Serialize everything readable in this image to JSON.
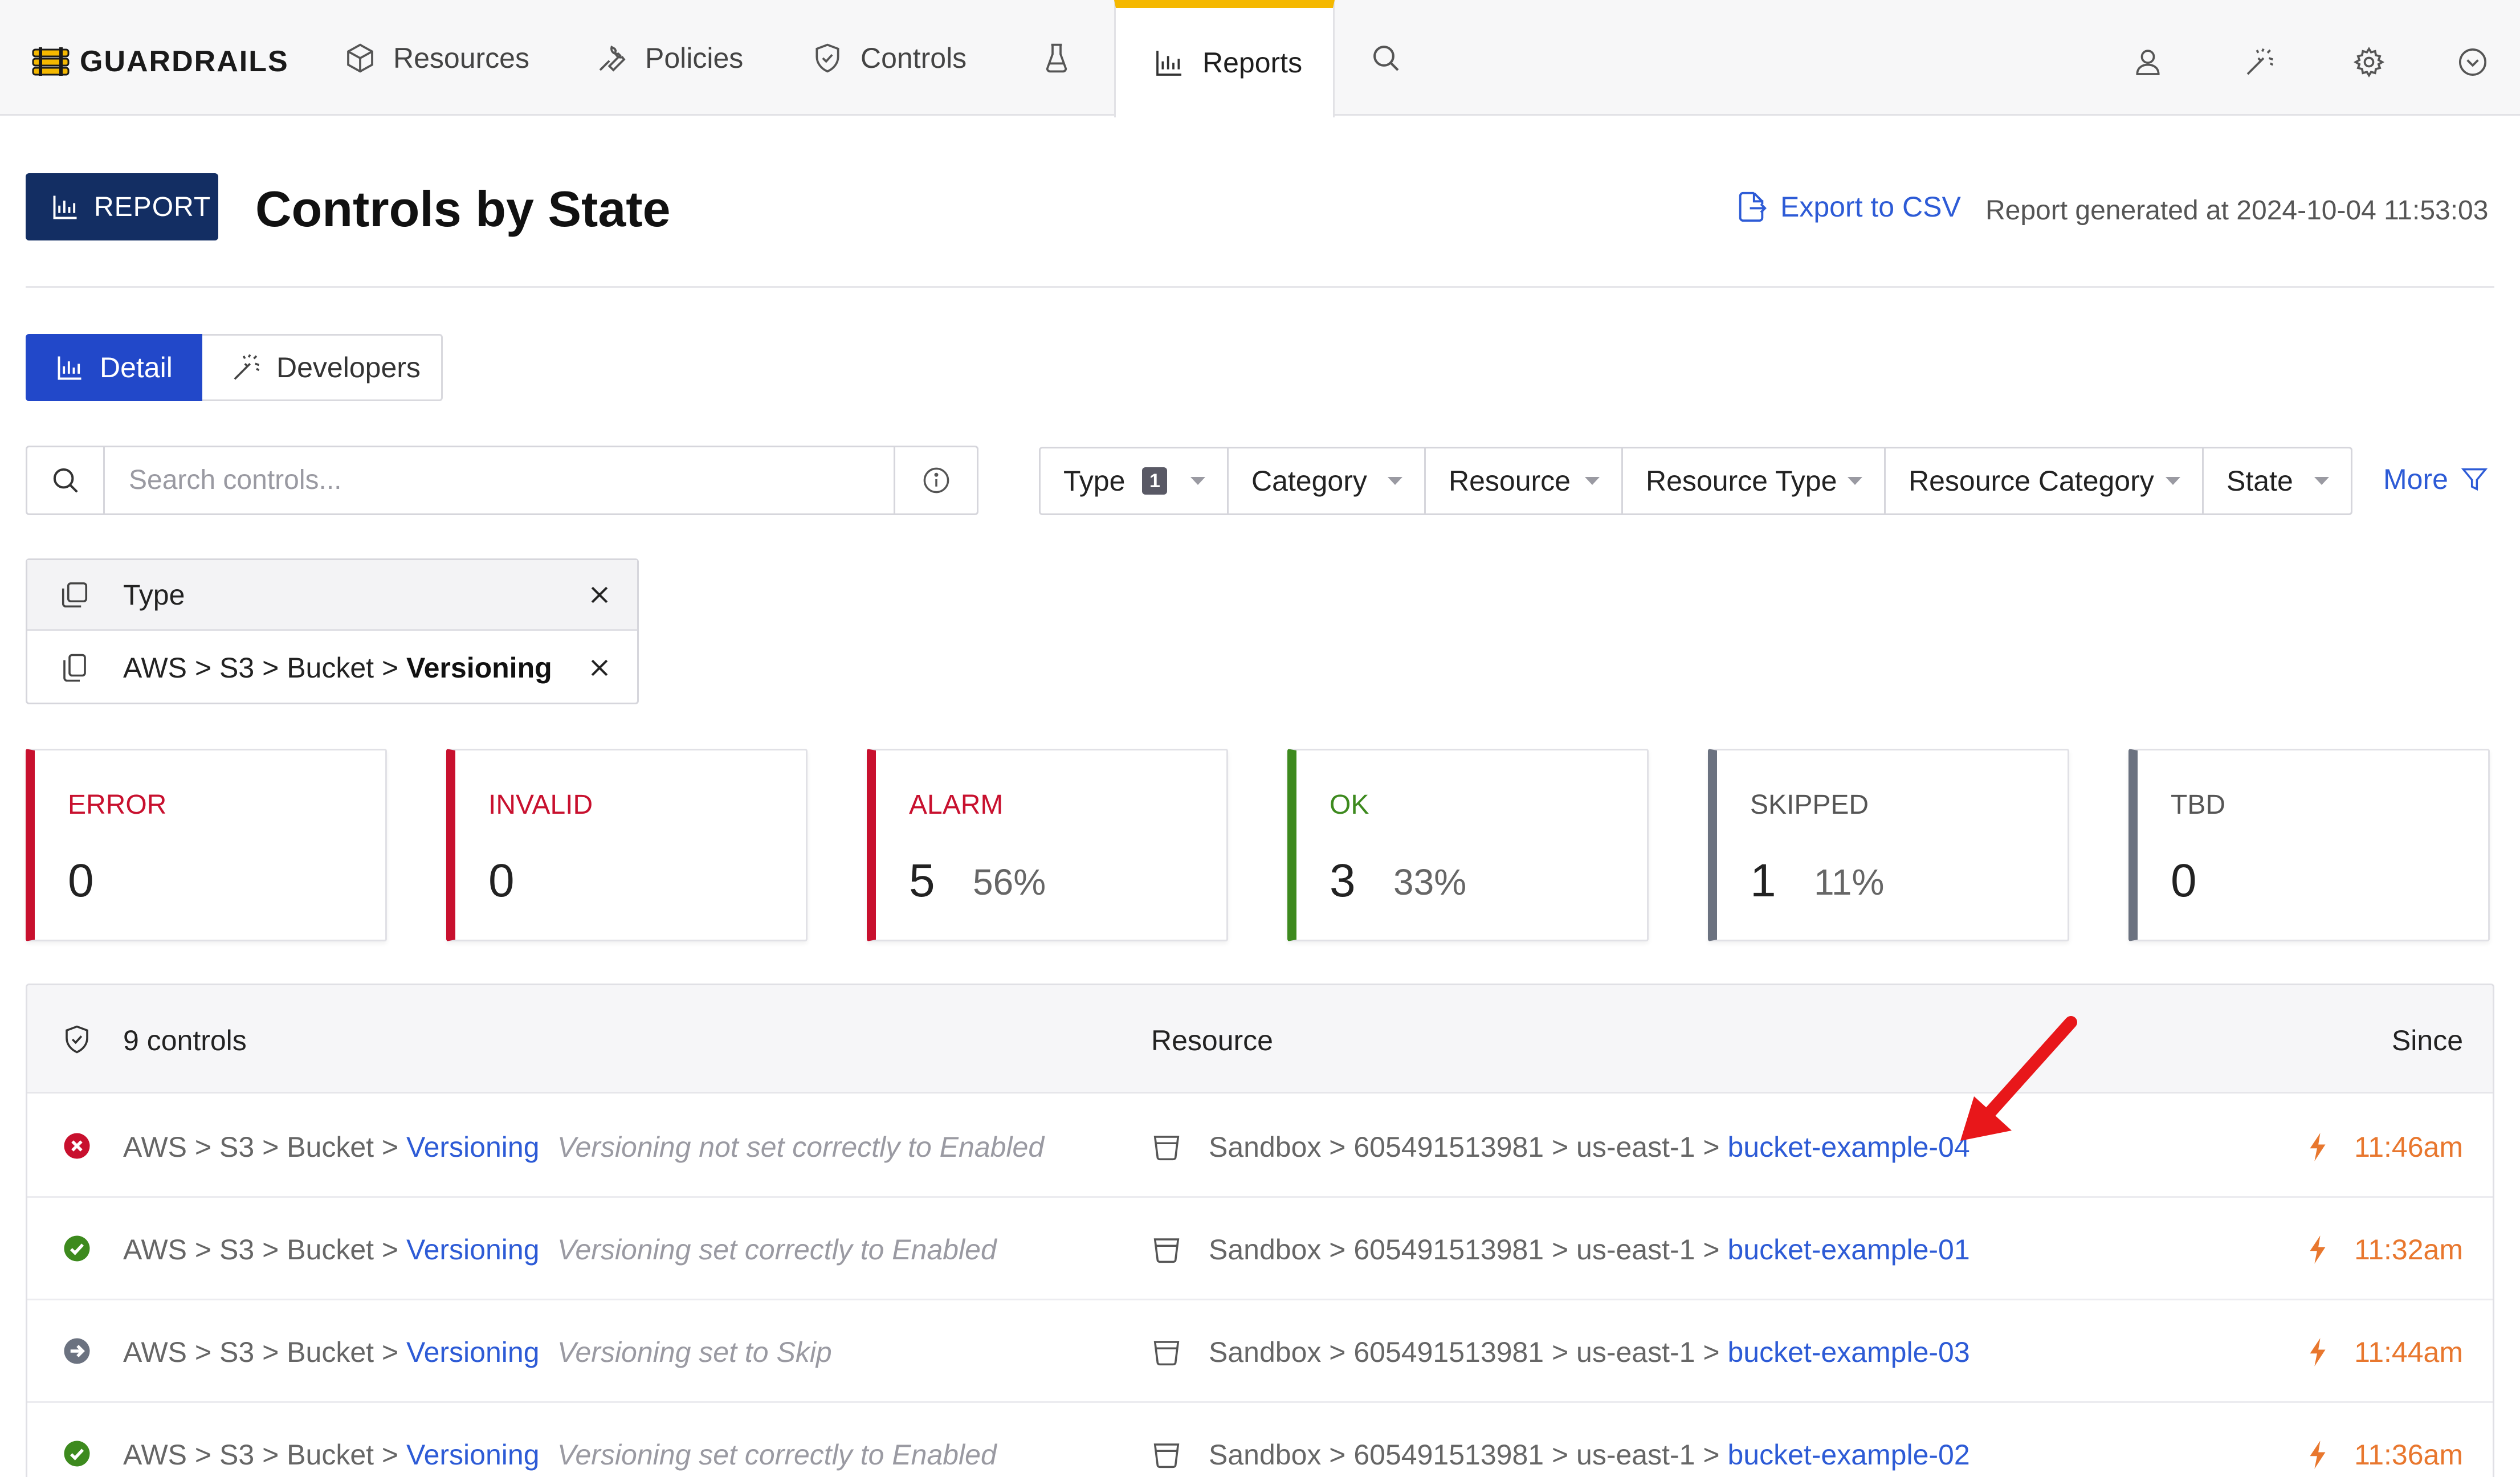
{
  "nav": {
    "brand": "GUARDRAILS",
    "items": [
      {
        "label": "Resources",
        "icon": "cube-icon"
      },
      {
        "label": "Policies",
        "icon": "wrench-icon"
      },
      {
        "label": "Controls",
        "icon": "shield-check-icon"
      },
      {
        "label": "",
        "icon": "lab-flask-icon"
      },
      {
        "label": "Reports",
        "icon": "bar-chart-icon",
        "active": true
      },
      {
        "label": "",
        "icon": "search-icon"
      }
    ],
    "right_icons": [
      "user-icon",
      "magic-wand-icon",
      "gear-icon",
      "chevron-down-circle-icon"
    ],
    "accent_color": "#f5b800"
  },
  "header": {
    "badge": "REPORT",
    "title": "Controls by State",
    "export_label": "Export to CSV",
    "generated": "Report generated at 2024-10-04 11:53:03"
  },
  "tabs": [
    {
      "label": "Detail",
      "active": true
    },
    {
      "label": "Developers",
      "active": false
    }
  ],
  "search": {
    "placeholder": "Search controls..."
  },
  "filters": [
    {
      "label": "Type",
      "count": "1"
    },
    {
      "label": "Category"
    },
    {
      "label": "Resource"
    },
    {
      "label": "Resource Type"
    },
    {
      "label": "Resource Category"
    },
    {
      "label": "State"
    }
  ],
  "more_label": "More",
  "active_filter": {
    "heading": "Type",
    "crumb": [
      "AWS",
      "S3",
      "Bucket",
      "Versioning"
    ]
  },
  "states": [
    {
      "name": "ERROR",
      "count": "0",
      "pct": "",
      "color": "#c8102e"
    },
    {
      "name": "INVALID",
      "count": "0",
      "pct": "",
      "color": "#c8102e"
    },
    {
      "name": "ALARM",
      "count": "5",
      "pct": "56%",
      "color": "#c8102e"
    },
    {
      "name": "OK",
      "count": "3",
      "pct": "33%",
      "color": "#3d8a1e"
    },
    {
      "name": "SKIPPED",
      "count": "1",
      "pct": "11%",
      "color": "#6b7280"
    },
    {
      "name": "TBD",
      "count": "0",
      "pct": "",
      "color": "#6b7280"
    }
  ],
  "table": {
    "count_label": "9 controls",
    "resource_header": "Resource",
    "since_header": "Since",
    "rows": [
      {
        "state": "alarm",
        "crumb": "AWS > S3 > Bucket > ",
        "control": "Versioning",
        "reason": "Versioning not set correctly to Enabled",
        "path": "Sandbox > 605491513981 > us-east-1 > ",
        "resource": "bucket-example-04",
        "since": "11:46am"
      },
      {
        "state": "ok",
        "crumb": "AWS > S3 > Bucket > ",
        "control": "Versioning",
        "reason": "Versioning set correctly to Enabled",
        "path": "Sandbox > 605491513981 > us-east-1 > ",
        "resource": "bucket-example-01",
        "since": "11:32am"
      },
      {
        "state": "skipped",
        "crumb": "AWS > S3 > Bucket > ",
        "control": "Versioning",
        "reason": "Versioning set to Skip",
        "path": "Sandbox > 605491513981 > us-east-1 > ",
        "resource": "bucket-example-03",
        "since": "11:44am"
      },
      {
        "state": "ok",
        "crumb": "AWS > S3 > Bucket > ",
        "control": "Versioning",
        "reason": "Versioning set correctly to Enabled",
        "path": "Sandbox > 605491513981 > us-east-1 > ",
        "resource": "bucket-example-02",
        "since": "11:36am"
      }
    ]
  },
  "colors": {
    "link": "#2d5bd6",
    "brand_dark": "#132e63",
    "primary": "#2248c9",
    "since": "#e8772e"
  }
}
